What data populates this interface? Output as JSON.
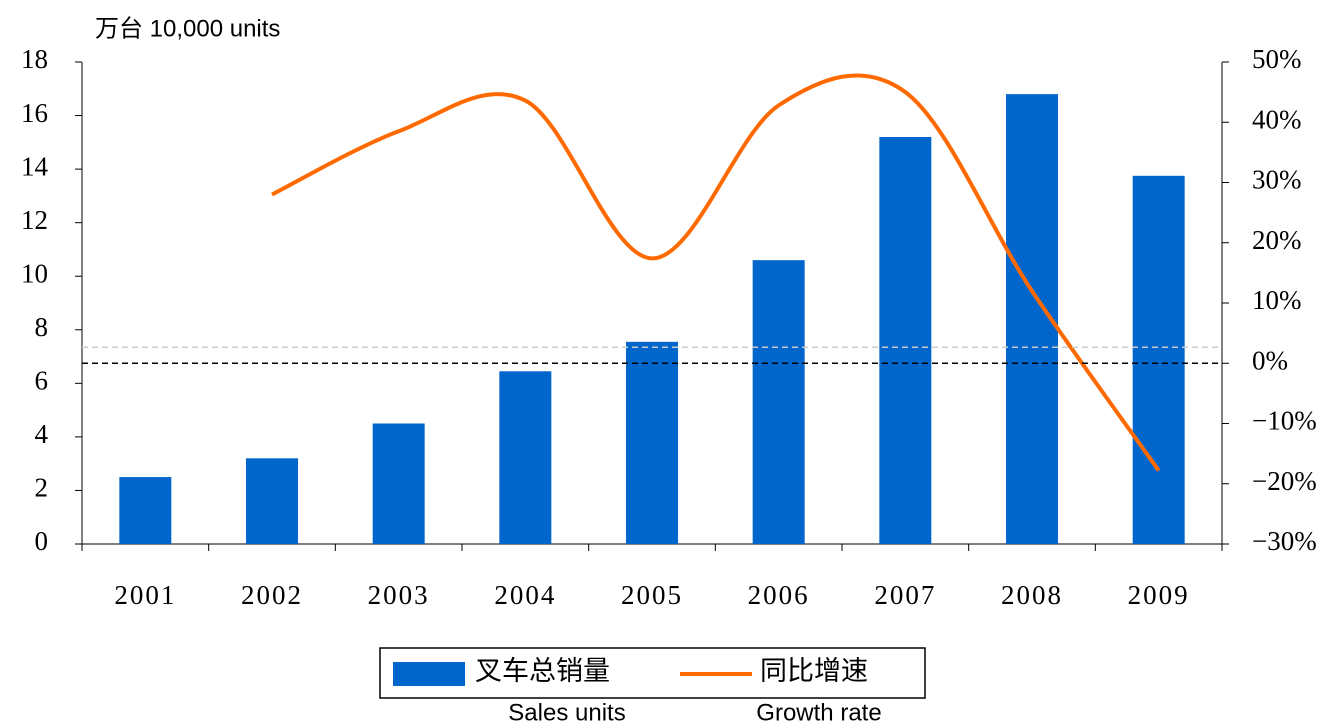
{
  "chart_data": {
    "type": "bar",
    "y_label": "万台 10,000 units",
    "categories": [
      "2001",
      "2002",
      "2003",
      "2004",
      "2005",
      "2006",
      "2007",
      "2008",
      "2009"
    ],
    "series": [
      {
        "name": "叉车总销量",
        "subtitle": "Sales units",
        "type": "bar",
        "color": "#0066cc",
        "axis": "y",
        "values": [
          2.5,
          3.2,
          4.5,
          6.45,
          7.55,
          10.6,
          15.2,
          16.8,
          13.75
        ]
      },
      {
        "name": "同比增速",
        "subtitle": "Growth rate",
        "type": "line",
        "color": "#ff6a00",
        "axis": "y2",
        "values": [
          null,
          28,
          38.5,
          43.6,
          17.4,
          42.8,
          45,
          12,
          -17.8
        ]
      }
    ],
    "ylim": [
      0,
      18
    ],
    "yticks": [
      0,
      2,
      4,
      6,
      8,
      10,
      12,
      14,
      16,
      18
    ],
    "y2lim": [
      -30,
      50
    ],
    "y2ticks": [
      {
        "value": -30,
        "label": "−30%"
      },
      {
        "value": -20,
        "label": "−20%"
      },
      {
        "value": -10,
        "label": "−10%"
      },
      {
        "value": 0,
        "label": "0%"
      },
      {
        "value": 10,
        "label": "10%"
      },
      {
        "value": 20,
        "label": "20%"
      },
      {
        "value": 30,
        "label": "30%"
      },
      {
        "value": 40,
        "label": "40%"
      },
      {
        "value": 50,
        "label": "50%"
      }
    ],
    "legend": "bottom"
  }
}
